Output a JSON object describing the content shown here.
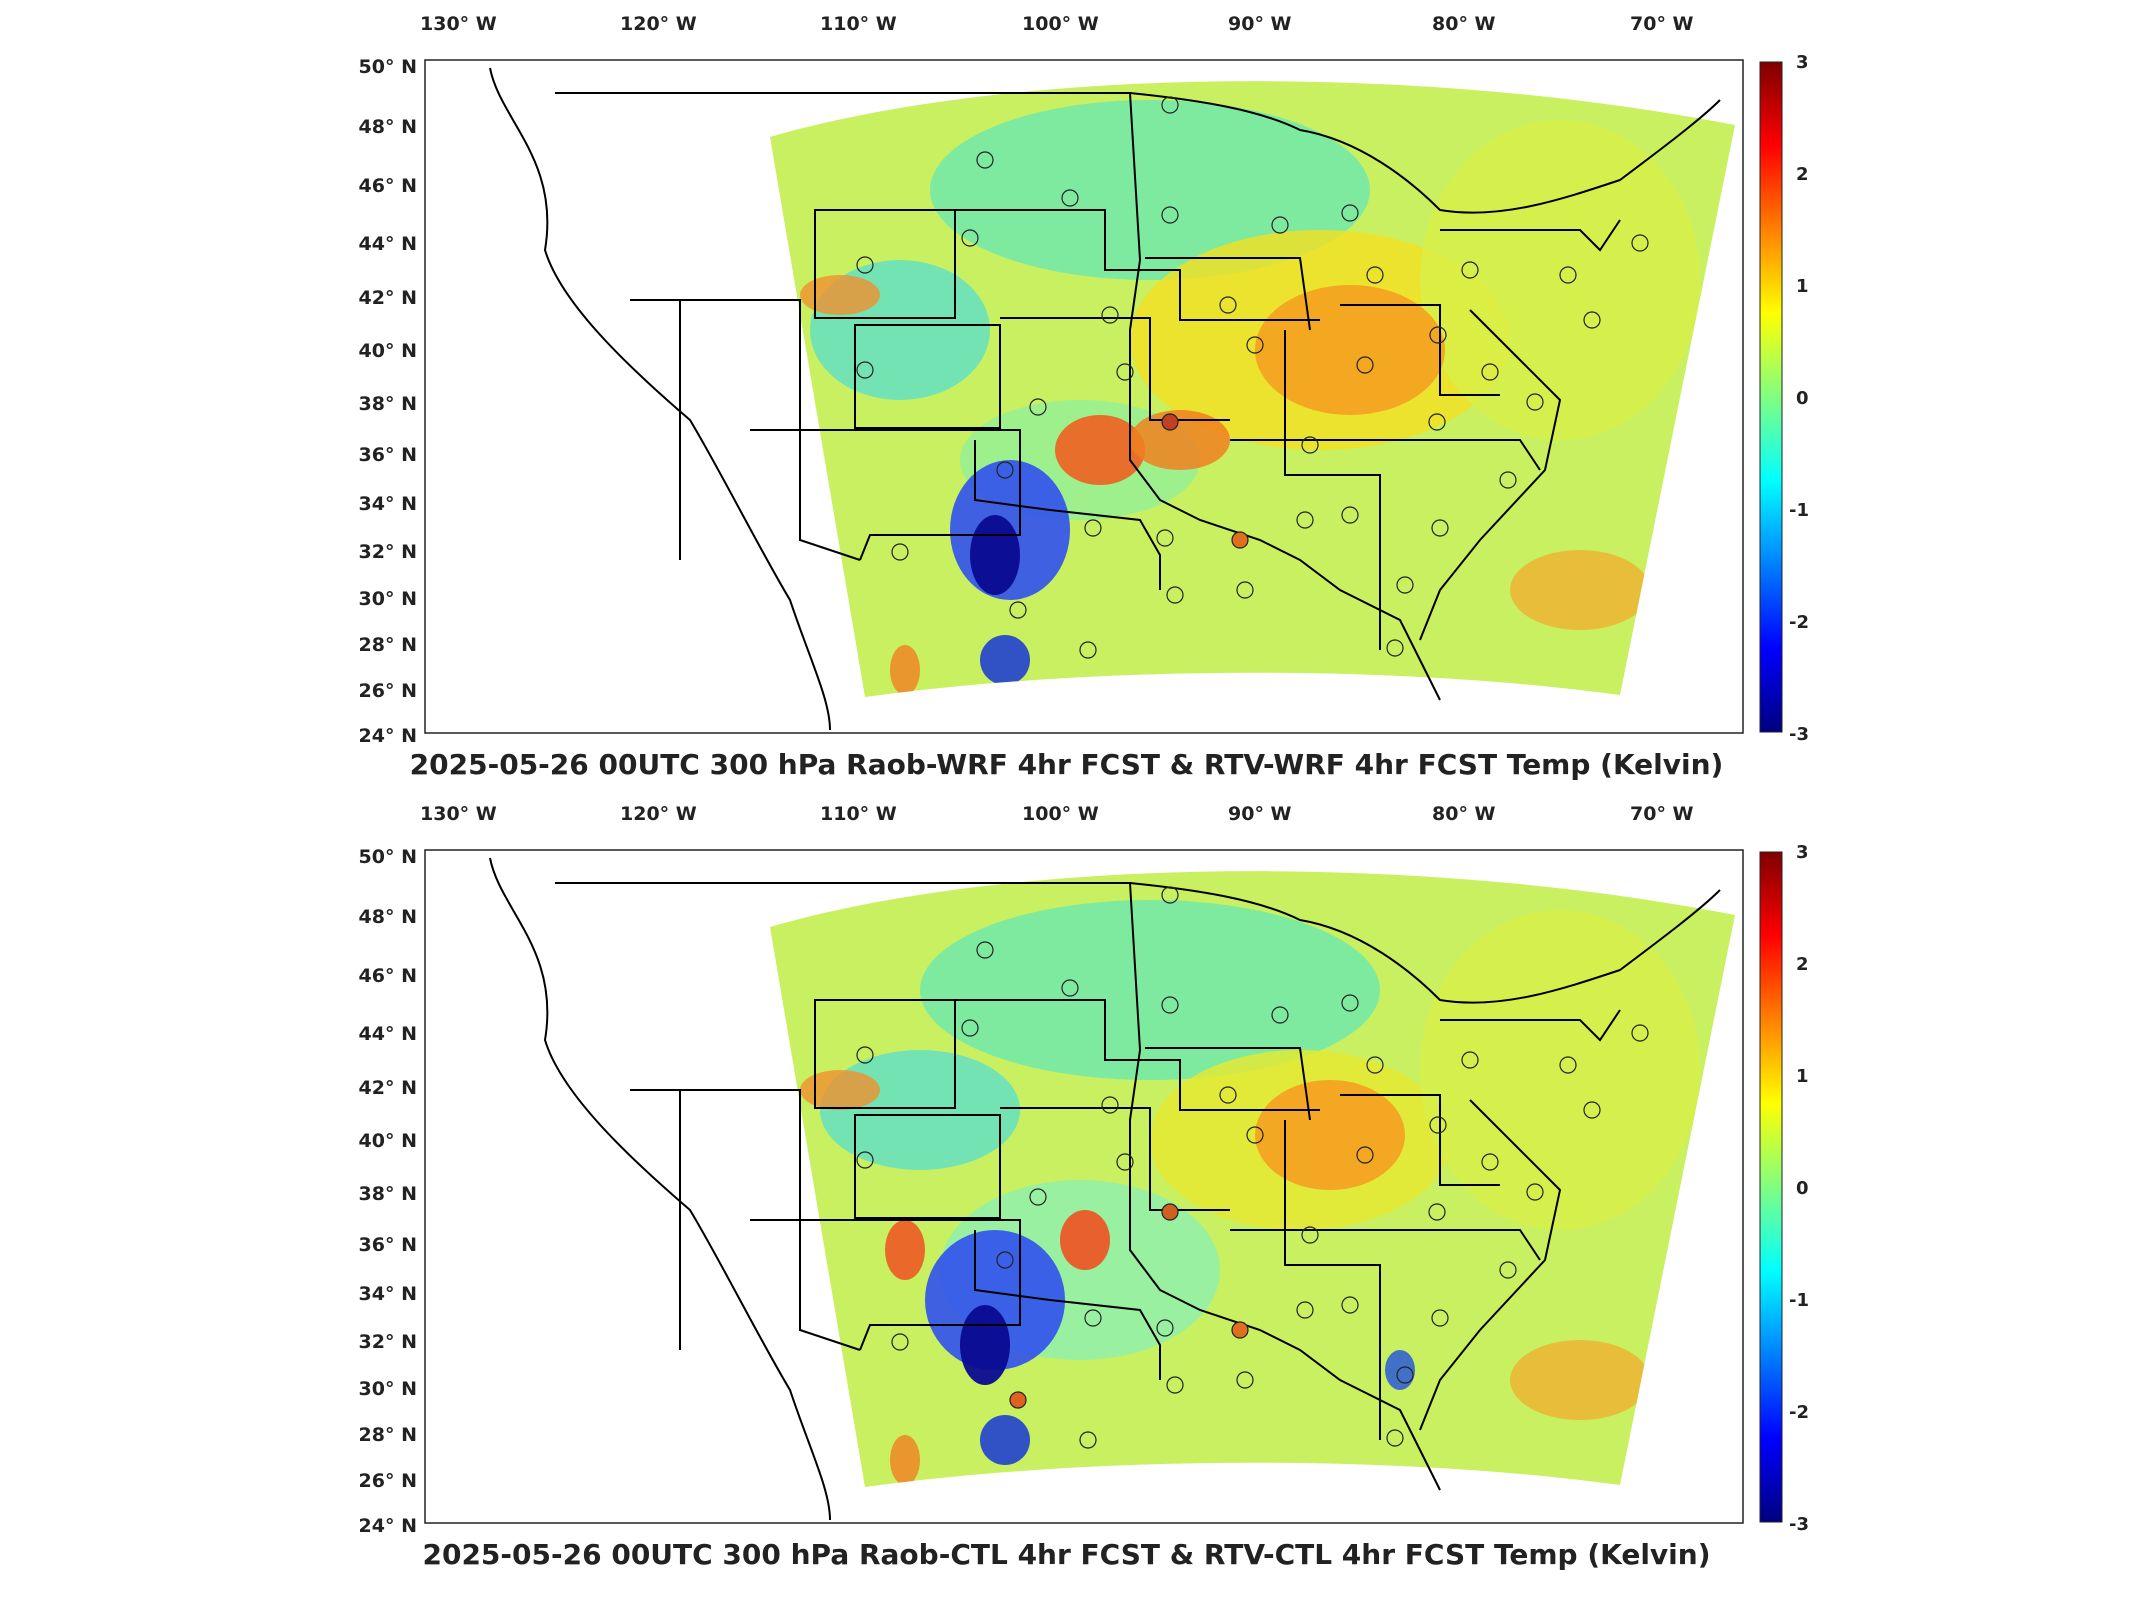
{
  "figure": {
    "panels": [
      {
        "id": "top",
        "title": "2025-05-26 00UTC 300 hPa Raob-WRF 4hr FCST & RTV-WRF 4hr FCST Temp (Kelvin)"
      },
      {
        "id": "bottom",
        "title": "2025-05-26 00UTC 300 hPa Raob-CTL 4hr FCST & RTV-CTL 4hr FCST Temp (Kelvin)"
      }
    ],
    "longitude_labels": [
      "130° W",
      "120° W",
      "110° W",
      "100° W",
      "90° W",
      "80° W",
      "70° W"
    ],
    "latitude_labels": [
      "50° N",
      "48° N",
      "46° N",
      "44° N",
      "42° N",
      "40° N",
      "38° N",
      "36° N",
      "34° N",
      "32° N",
      "30° N",
      "28° N",
      "26° N",
      "24° N"
    ],
    "colorbar": {
      "ticks": [
        "3",
        "2",
        "1",
        "0",
        "-1",
        "-2",
        "-3"
      ],
      "colormap": "jet",
      "colors": [
        "#7f0000",
        "#ff0000",
        "#ff8000",
        "#ffff00",
        "#80ff80",
        "#00ffff",
        "#0080ff",
        "#0000ff",
        "#00007f"
      ]
    }
  }
}
